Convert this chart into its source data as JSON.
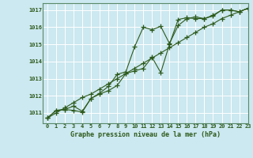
{
  "title": "Graphe pression niveau de la mer (hPa)",
  "background_color": "#cce8f0",
  "grid_color": "#aaccdd",
  "line_color": "#2d5a1b",
  "xlim": [
    -0.5,
    23
  ],
  "ylim": [
    1010.4,
    1017.4
  ],
  "xticks": [
    0,
    1,
    2,
    3,
    4,
    5,
    6,
    7,
    8,
    9,
    10,
    11,
    12,
    13,
    14,
    15,
    16,
    17,
    18,
    19,
    20,
    21,
    22,
    23
  ],
  "yticks": [
    1011,
    1012,
    1013,
    1014,
    1015,
    1016,
    1017
  ],
  "series_straight": [
    1010.7,
    1011.0,
    1011.3,
    1011.6,
    1011.9,
    1012.1,
    1012.4,
    1012.7,
    1013.0,
    1013.3,
    1013.6,
    1013.9,
    1014.2,
    1014.5,
    1014.8,
    1015.1,
    1015.4,
    1015.7,
    1016.0,
    1016.2,
    1016.5,
    1016.7,
    1016.9,
    1017.1
  ],
  "series_upper": [
    1010.7,
    1011.15,
    1011.2,
    1011.15,
    1011.05,
    1011.85,
    1012.15,
    1012.55,
    1013.25,
    1013.4,
    1014.85,
    1016.0,
    1015.85,
    1016.05,
    1015.05,
    1016.1,
    1016.5,
    1016.6,
    1016.5,
    1016.7,
    1017.0,
    1017.0,
    1016.9,
    1017.1
  ],
  "series_lower": [
    1010.7,
    1011.15,
    1011.2,
    1011.4,
    1011.1,
    1011.85,
    1012.1,
    1012.3,
    1012.6,
    1013.3,
    1013.45,
    1013.6,
    1014.25,
    1013.35,
    1015.0,
    1016.45,
    1016.55,
    1016.5,
    1016.5,
    1016.65,
    1017.0,
    1017.0,
    1016.9,
    1017.1
  ]
}
